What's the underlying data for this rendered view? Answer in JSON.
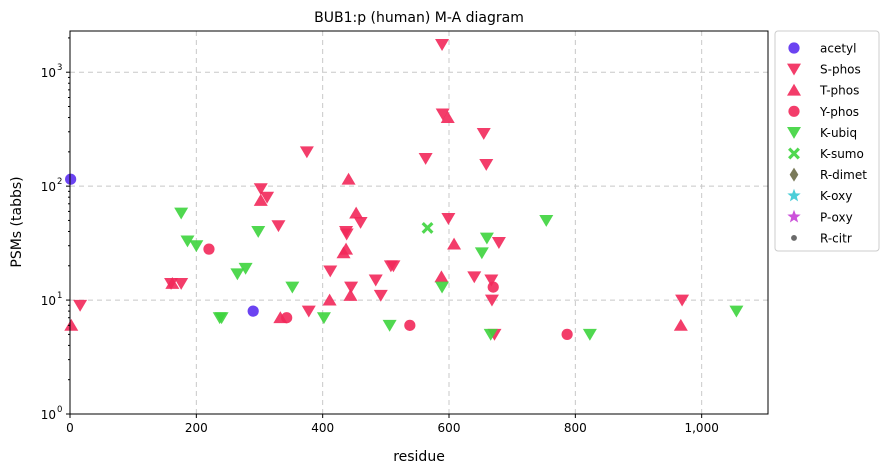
{
  "chart_data": {
    "type": "scatter",
    "title": "BUB1:p (human) M-A diagram",
    "xlabel": "residue",
    "ylabel": "PSMs (tabbs)",
    "xlim": [
      0,
      1105
    ],
    "ylim": [
      1,
      2300
    ],
    "yscale": "log",
    "xticks": [
      0,
      200,
      400,
      600,
      800,
      1000
    ],
    "xtick_labels": [
      "0",
      "200",
      "400",
      "600",
      "800",
      "1,000"
    ],
    "yticks": [
      1,
      10,
      100,
      1000
    ],
    "ytick_labels": [
      "10",
      "10",
      "10",
      "10"
    ],
    "ytick_exponents": [
      "0",
      "1",
      "2",
      "3"
    ],
    "grid": true,
    "legend_position": "outside-right",
    "series": [
      {
        "name": "acetyl",
        "marker": "circle",
        "color": "#5b2ff0",
        "points": [
          [
            1,
            115
          ],
          [
            290,
            8
          ]
        ]
      },
      {
        "name": "S-phos",
        "marker": "triangle-down",
        "color": "#f2285a",
        "points": [
          [
            16,
            9
          ],
          [
            160,
            14
          ],
          [
            176,
            14
          ],
          [
            302,
            95
          ],
          [
            312,
            80
          ],
          [
            330,
            45
          ],
          [
            375,
            200
          ],
          [
            378,
            8
          ],
          [
            412,
            18
          ],
          [
            437,
            40
          ],
          [
            438,
            38
          ],
          [
            445,
            13
          ],
          [
            460,
            48
          ],
          [
            484,
            15
          ],
          [
            492,
            11
          ],
          [
            508,
            20
          ],
          [
            512,
            20
          ],
          [
            563,
            175
          ],
          [
            589,
            1750
          ],
          [
            590,
            430
          ],
          [
            599,
            52
          ],
          [
            640,
            16
          ],
          [
            655,
            290
          ],
          [
            659,
            155
          ],
          [
            667,
            15
          ],
          [
            668,
            10
          ],
          [
            672,
            5
          ],
          [
            679,
            32
          ],
          [
            969,
            10
          ]
        ]
      },
      {
        "name": "T-phos",
        "marker": "triangle-up",
        "color": "#f2285a",
        "points": [
          [
            2,
            6
          ],
          [
            162,
            14
          ],
          [
            302,
            75
          ],
          [
            333,
            7
          ],
          [
            411,
            10
          ],
          [
            433,
            26
          ],
          [
            437,
            28
          ],
          [
            441,
            115
          ],
          [
            444,
            11
          ],
          [
            453,
            58
          ],
          [
            588,
            16
          ],
          [
            598,
            400
          ],
          [
            608,
            31
          ],
          [
            967,
            6
          ]
        ]
      },
      {
        "name": "Y-phos",
        "marker": "circle",
        "color": "#f2285a",
        "points": [
          [
            220,
            28
          ],
          [
            343,
            7
          ],
          [
            538,
            6
          ],
          [
            670,
            13
          ],
          [
            787,
            5
          ]
        ]
      },
      {
        "name": "K-ubiq",
        "marker": "triangle-down",
        "color": "#3dd43d",
        "points": [
          [
            176,
            58
          ],
          [
            186,
            33
          ],
          [
            200,
            30
          ],
          [
            237,
            7
          ],
          [
            240,
            7
          ],
          [
            265,
            17
          ],
          [
            278,
            19
          ],
          [
            298,
            40
          ],
          [
            352,
            13
          ],
          [
            402,
            7
          ],
          [
            506,
            6
          ],
          [
            589,
            13
          ],
          [
            652,
            26
          ],
          [
            660,
            35
          ],
          [
            666,
            5
          ],
          [
            754,
            50
          ],
          [
            823,
            5
          ],
          [
            1055,
            8
          ]
        ]
      },
      {
        "name": "K-sumo",
        "marker": "x",
        "color": "#3dd43d",
        "points": [
          [
            566,
            43
          ]
        ]
      },
      {
        "name": "R-dimet",
        "marker": "diamond",
        "color": "#6b6b47",
        "points": []
      },
      {
        "name": "K-oxy",
        "marker": "star",
        "color": "#38c9d4",
        "points": []
      },
      {
        "name": "P-oxy",
        "marker": "star",
        "color": "#c63fd6",
        "points": []
      },
      {
        "name": "R-citr",
        "marker": "dot",
        "color": "#5a5a5a",
        "points": []
      }
    ]
  }
}
